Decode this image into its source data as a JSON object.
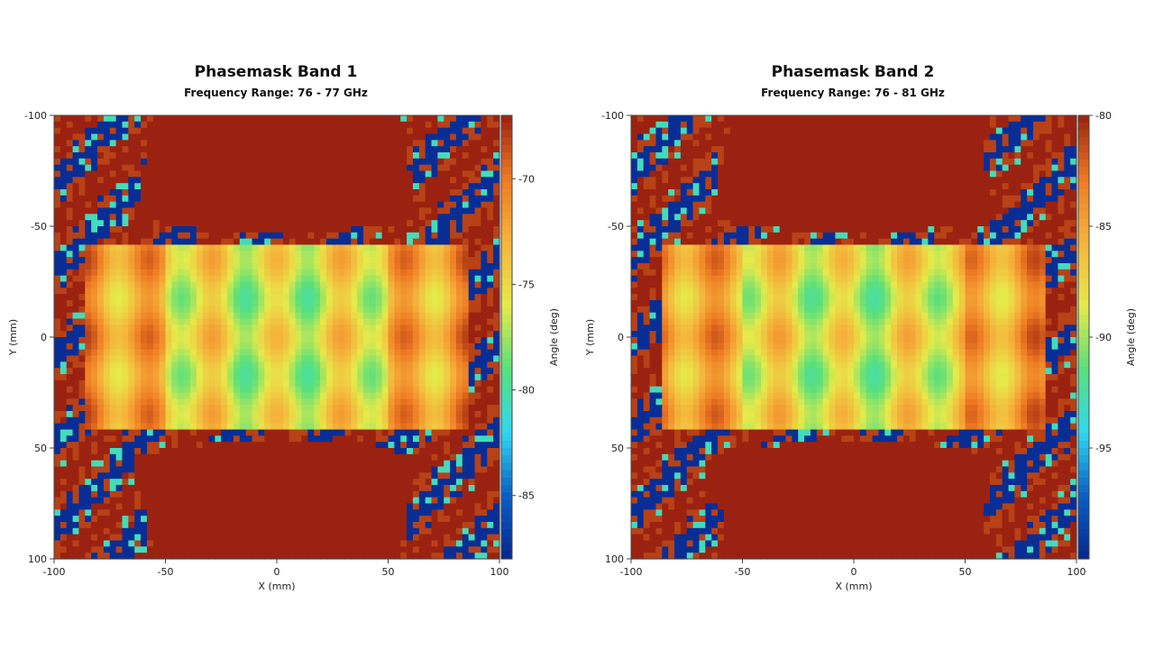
{
  "chart_data": [
    {
      "type": "heatmap",
      "title": "Phasemask Band 1",
      "subtitle": "Frequency Range: 76 - 77 GHz",
      "xlabel": "X (mm)",
      "ylabel": "Y (mm)",
      "colorbar_label": "Angle (deg)",
      "xlim": [
        -100,
        100
      ],
      "ylim": [
        -100,
        100
      ],
      "x_ticks": [
        -100,
        -50,
        0,
        50,
        100
      ],
      "y_ticks": [
        -100,
        -50,
        0,
        50,
        100
      ],
      "clim": [
        -88,
        -67
      ],
      "colorbar_ticks": [
        -70,
        -75,
        -80,
        -85
      ],
      "colormap": [
        "#08268f",
        "#0a5fc4",
        "#2fd8f0",
        "#5be07a",
        "#e6ea4a",
        "#f5b43c",
        "#ee7a22",
        "#9b2210"
      ]
    },
    {
      "type": "heatmap",
      "title": "Phasemask Band 2",
      "subtitle": "Frequency Range: 76 - 81 GHz",
      "xlabel": "X (mm)",
      "ylabel": "Y (mm)",
      "colorbar_label": "Angle (deg)",
      "xlim": [
        -100,
        100
      ],
      "ylim": [
        -100,
        100
      ],
      "x_ticks": [
        -100,
        -50,
        0,
        50,
        100
      ],
      "y_ticks": [
        -100,
        -50,
        0,
        50,
        100
      ],
      "clim": [
        -100,
        -80
      ],
      "colorbar_ticks": [
        -80,
        -85,
        -90,
        -95
      ],
      "colormap": [
        "#08268f",
        "#0a5fc4",
        "#2fd8f0",
        "#5be07a",
        "#e6ea4a",
        "#f5b43c",
        "#ee7a22",
        "#9b2210"
      ]
    }
  ]
}
